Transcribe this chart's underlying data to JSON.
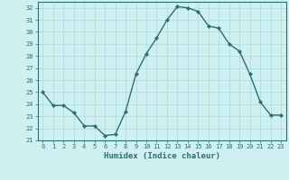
{
  "x": [
    0,
    1,
    2,
    3,
    4,
    5,
    6,
    7,
    8,
    9,
    10,
    11,
    12,
    13,
    14,
    15,
    16,
    17,
    18,
    19,
    20,
    21,
    22,
    23
  ],
  "y": [
    25.0,
    23.9,
    23.9,
    23.3,
    22.2,
    22.2,
    21.4,
    21.5,
    23.4,
    26.5,
    28.2,
    29.5,
    31.0,
    32.1,
    32.0,
    31.7,
    30.5,
    30.3,
    29.0,
    28.4,
    26.5,
    24.2,
    23.1,
    23.1
  ],
  "line_color": "#2d6e6e",
  "marker": "D",
  "marker_size": 2.0,
  "bg_color": "#cff0f0",
  "grid_color": "#aadada",
  "xlabel": "Humidex (Indice chaleur)",
  "ylim": [
    21,
    32.5
  ],
  "xlim": [
    -0.5,
    23.5
  ],
  "yticks": [
    21,
    22,
    23,
    24,
    25,
    26,
    27,
    28,
    29,
    30,
    31,
    32
  ],
  "xticks": [
    0,
    1,
    2,
    3,
    4,
    5,
    6,
    7,
    8,
    9,
    10,
    11,
    12,
    13,
    14,
    15,
    16,
    17,
    18,
    19,
    20,
    21,
    22,
    23
  ]
}
